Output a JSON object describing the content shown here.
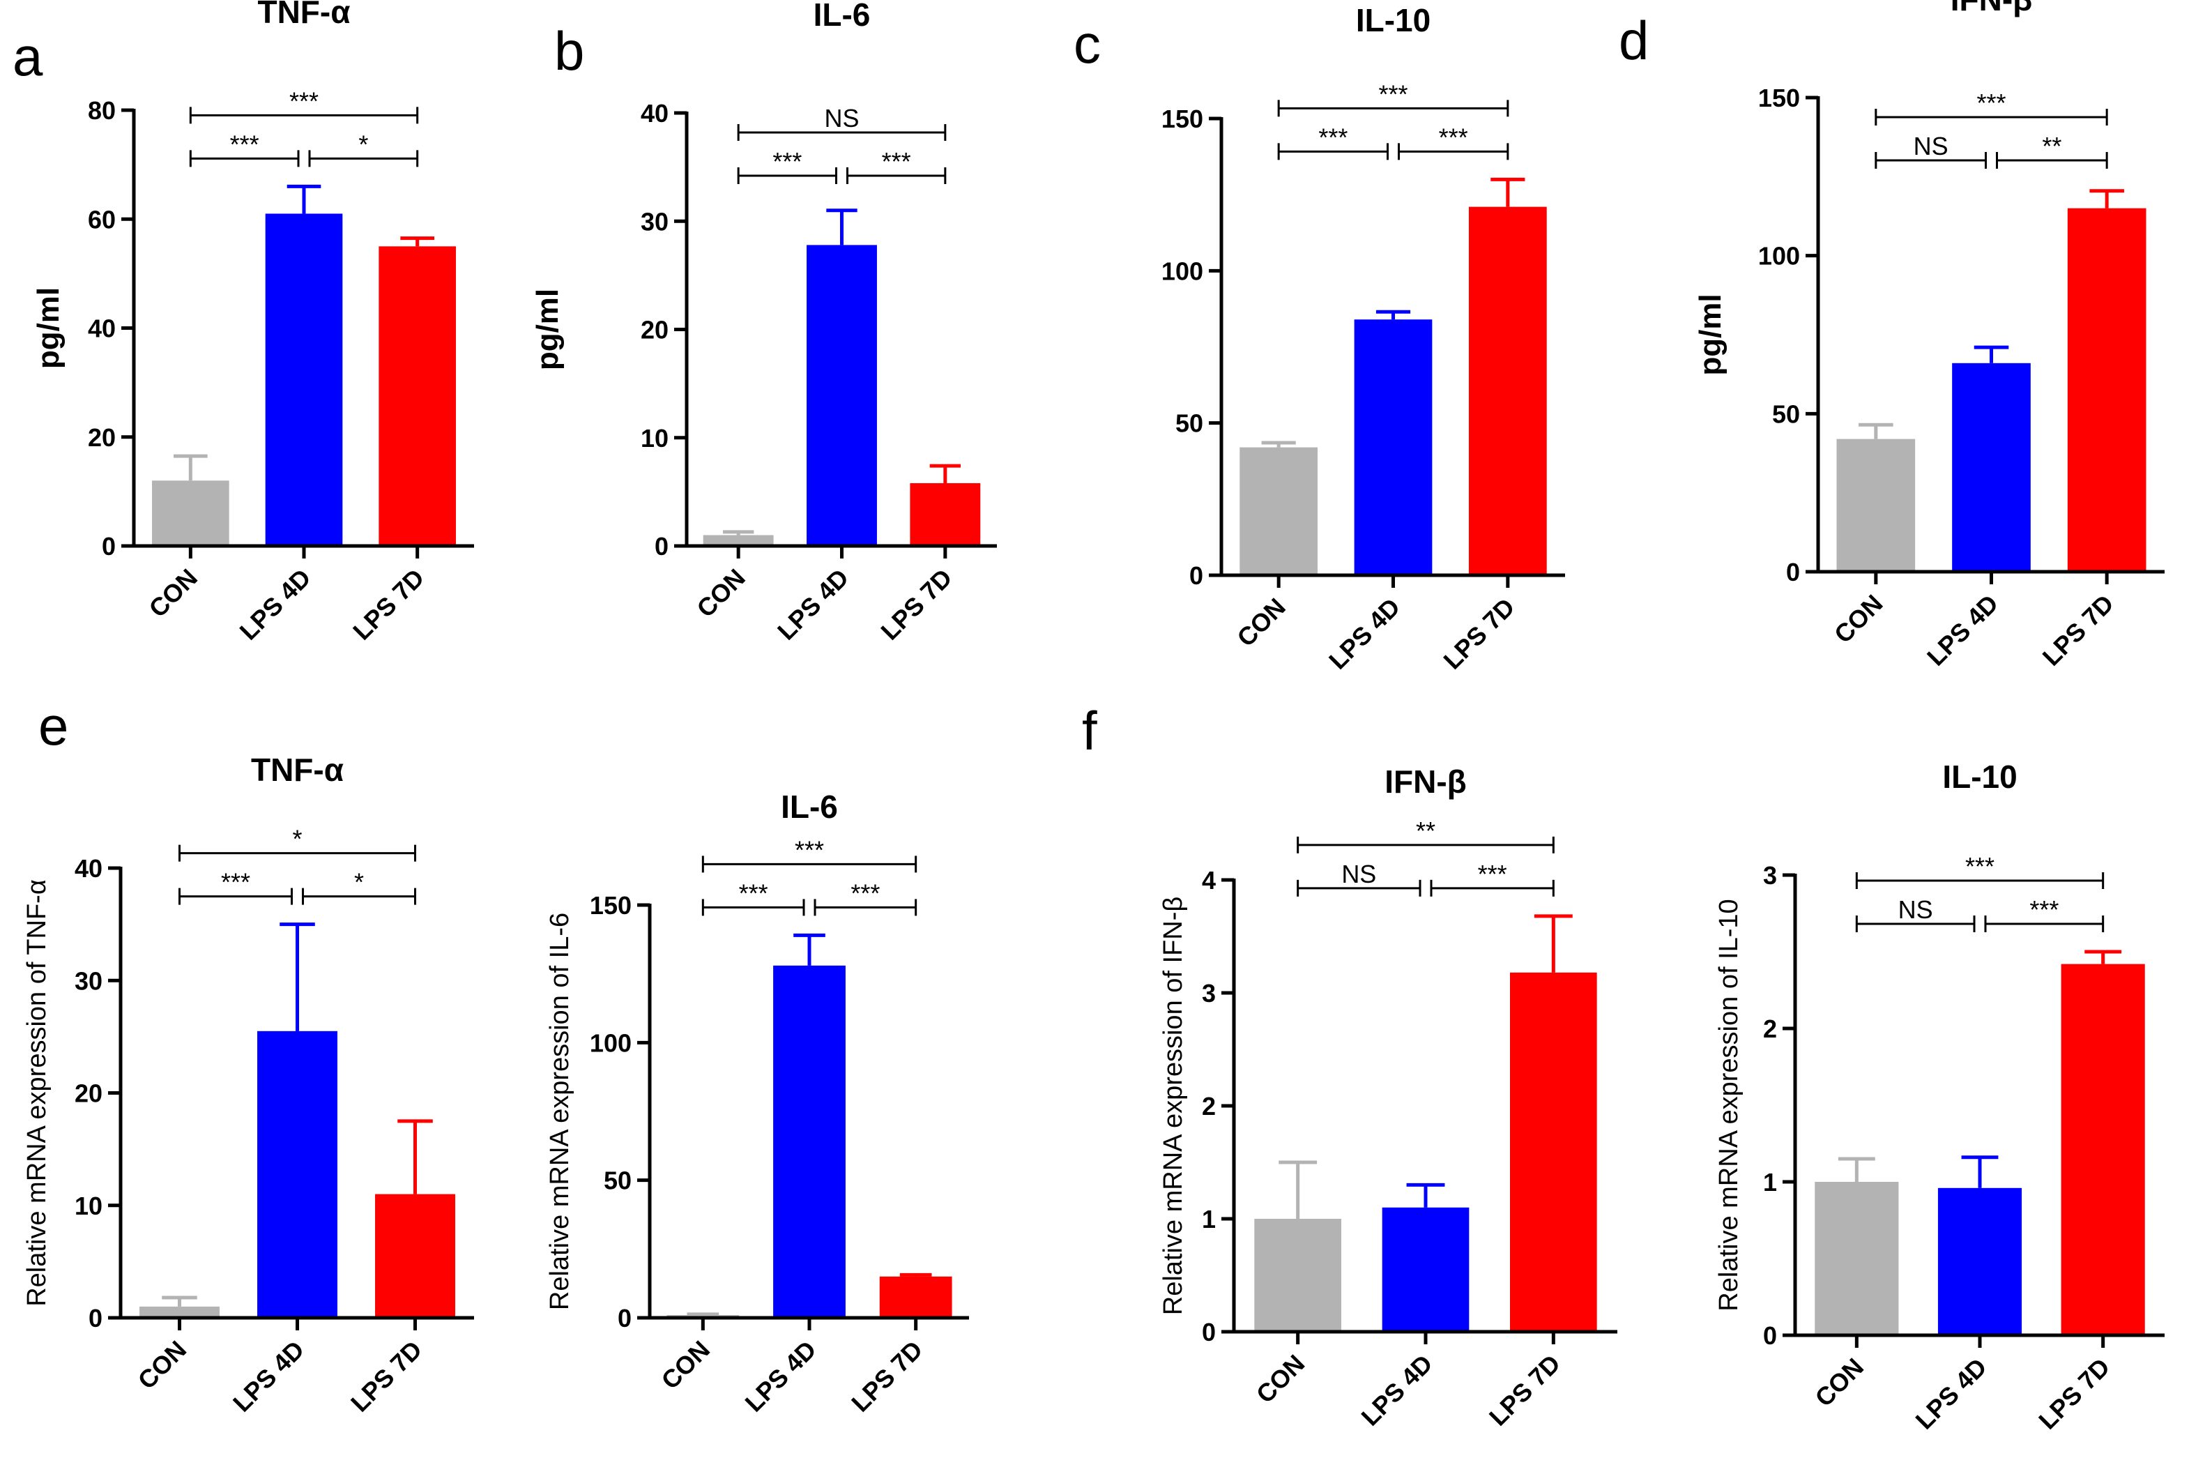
{
  "chart_data": [
    {
      "letter": "a",
      "type": "bar",
      "title": "TNF-α",
      "ylabel": "pg/ml",
      "ylim": [
        0,
        80
      ],
      "yticks": [
        0,
        20,
        40,
        60,
        80
      ],
      "categories": [
        "CON",
        "LPS 4D",
        "LPS 7D"
      ],
      "values": [
        12,
        61,
        55
      ],
      "errors": [
        4.5,
        5,
        1.5
      ],
      "colors": [
        "#b3b3b3",
        "#0000ff",
        "#ff0000"
      ],
      "significance": [
        {
          "from": 0,
          "to": 1,
          "label": "***",
          "level": 0
        },
        {
          "from": 1,
          "to": 2,
          "label": "*",
          "level": 0
        },
        {
          "from": 0,
          "to": 2,
          "label": "***",
          "level": 1
        }
      ]
    },
    {
      "letter": "b",
      "type": "bar",
      "title": "IL-6",
      "ylabel": "pg/ml",
      "ylim": [
        0,
        40
      ],
      "yticks": [
        0,
        10,
        20,
        30,
        40
      ],
      "categories": [
        "CON",
        "LPS 4D",
        "LPS 7D"
      ],
      "values": [
        1,
        27.8,
        5.8
      ],
      "errors": [
        0.3,
        3.2,
        1.6
      ],
      "colors": [
        "#b3b3b3",
        "#0000ff",
        "#ff0000"
      ],
      "significance": [
        {
          "from": 0,
          "to": 1,
          "label": "***",
          "level": 0
        },
        {
          "from": 1,
          "to": 2,
          "label": "***",
          "level": 0
        },
        {
          "from": 0,
          "to": 2,
          "label": "NS",
          "level": 1
        }
      ]
    },
    {
      "letter": "c",
      "type": "bar",
      "title": "IL-10",
      "ylabel": "",
      "ylim": [
        0,
        150
      ],
      "yticks": [
        0,
        50,
        100,
        150
      ],
      "categories": [
        "CON",
        "LPS 4D",
        "LPS 7D"
      ],
      "values": [
        42,
        84,
        121
      ],
      "errors": [
        1.5,
        2.5,
        9
      ],
      "colors": [
        "#b3b3b3",
        "#0000ff",
        "#ff0000"
      ],
      "significance": [
        {
          "from": 0,
          "to": 1,
          "label": "***",
          "level": 0
        },
        {
          "from": 1,
          "to": 2,
          "label": "***",
          "level": 0
        },
        {
          "from": 0,
          "to": 2,
          "label": "***",
          "level": 1
        }
      ]
    },
    {
      "letter": "d",
      "type": "bar",
      "title": "IFN-β",
      "ylabel": "pg/ml",
      "ylim": [
        0,
        150
      ],
      "yticks": [
        0,
        50,
        100,
        150
      ],
      "categories": [
        "CON",
        "LPS 4D",
        "LPS 7D"
      ],
      "values": [
        42,
        66,
        115
      ],
      "errors": [
        4.5,
        5,
        5.5
      ],
      "colors": [
        "#b3b3b3",
        "#0000ff",
        "#ff0000"
      ],
      "significance": [
        {
          "from": 0,
          "to": 1,
          "label": "NS",
          "level": 0
        },
        {
          "from": 1,
          "to": 2,
          "label": "**",
          "level": 0
        },
        {
          "from": 0,
          "to": 2,
          "label": "***",
          "level": 1
        }
      ]
    },
    {
      "letter": "e",
      "type": "bar",
      "title": "TNF-α",
      "ylabel": "Relative mRNA expression of TNF-α",
      "ylim": [
        0,
        40
      ],
      "yticks": [
        0,
        10,
        20,
        30,
        40
      ],
      "categories": [
        "CON",
        "LPS 4D",
        "LPS 7D"
      ],
      "values": [
        1,
        25.5,
        11
      ],
      "errors": [
        0.8,
        9.5,
        6.5
      ],
      "colors": [
        "#b3b3b3",
        "#0000ff",
        "#ff0000"
      ],
      "significance": [
        {
          "from": 0,
          "to": 1,
          "label": "***",
          "level": 0
        },
        {
          "from": 1,
          "to": 2,
          "label": "*",
          "level": 0
        },
        {
          "from": 0,
          "to": 2,
          "label": "*",
          "level": 1
        }
      ]
    },
    {
      "letter": "",
      "type": "bar",
      "title": "IL-6",
      "ylabel": "Relative mRNA expression of IL-6",
      "ylim": [
        0,
        150
      ],
      "yticks": [
        0,
        50,
        100,
        150
      ],
      "categories": [
        "CON",
        "LPS 4D",
        "LPS 7D"
      ],
      "values": [
        1,
        128,
        15
      ],
      "errors": [
        0.3,
        11,
        0.6
      ],
      "colors": [
        "#b3b3b3",
        "#0000ff",
        "#ff0000"
      ],
      "significance": [
        {
          "from": 0,
          "to": 1,
          "label": "***",
          "level": 0
        },
        {
          "from": 1,
          "to": 2,
          "label": "***",
          "level": 0
        },
        {
          "from": 0,
          "to": 2,
          "label": "***",
          "level": 1
        }
      ]
    },
    {
      "letter": "f",
      "type": "bar",
      "title": "IFN-β",
      "ylabel": "Relative mRNA expression of IFN-β",
      "ylim": [
        0,
        4
      ],
      "yticks": [
        0,
        1,
        2,
        3,
        4
      ],
      "categories": [
        "CON",
        "LPS 4D",
        "LPS 7D"
      ],
      "values": [
        1,
        1.1,
        3.18
      ],
      "errors": [
        0.5,
        0.2,
        0.5
      ],
      "colors": [
        "#b3b3b3",
        "#0000ff",
        "#ff0000"
      ],
      "significance": [
        {
          "from": 0,
          "to": 1,
          "label": "NS",
          "level": 0
        },
        {
          "from": 1,
          "to": 2,
          "label": "***",
          "level": 0
        },
        {
          "from": 0,
          "to": 2,
          "label": "**",
          "level": 1
        }
      ]
    },
    {
      "letter": "",
      "type": "bar",
      "title": "IL-10",
      "ylabel": "Relative mRNA expression of IL-10",
      "ylim": [
        0,
        3
      ],
      "yticks": [
        0,
        1,
        2,
        3
      ],
      "categories": [
        "CON",
        "LPS 4D",
        "LPS 7D"
      ],
      "values": [
        1,
        0.96,
        2.42
      ],
      "errors": [
        0.15,
        0.2,
        0.08
      ],
      "colors": [
        "#b3b3b3",
        "#0000ff",
        "#ff0000"
      ],
      "significance": [
        {
          "from": 0,
          "to": 1,
          "label": "NS",
          "level": 0
        },
        {
          "from": 1,
          "to": 2,
          "label": "***",
          "level": 0
        },
        {
          "from": 0,
          "to": 2,
          "label": "***",
          "level": 1
        }
      ]
    }
  ]
}
